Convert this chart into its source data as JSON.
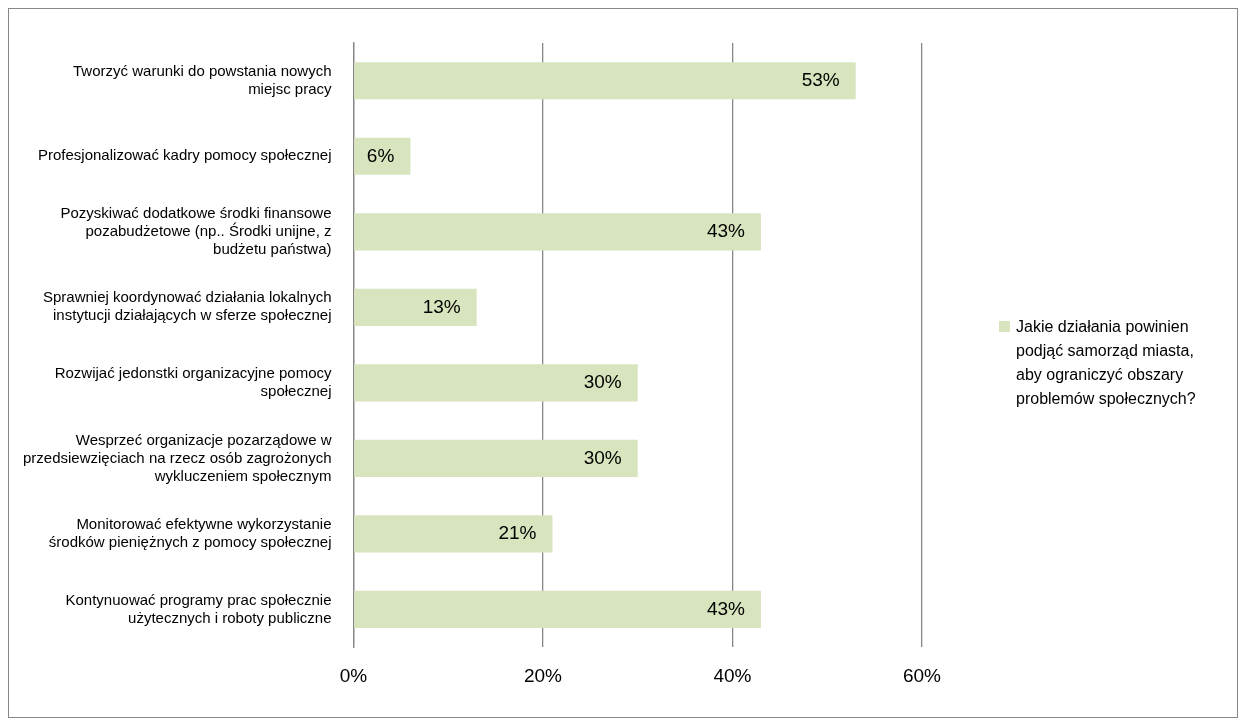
{
  "chart_data": {
    "type": "bar",
    "orientation": "horizontal",
    "categories": [
      "Tworzyć warunki do powstania nowych\nmiejsc pracy",
      "Profesjonalizować kadry pomocy społecznej",
      "Pozyskiwać dodatkowe środki finansowe\npozabudżetowe (np.. Środki unijne, z\nbudżetu państwa)",
      "Sprawniej koordynować działania lokalnych\ninstytucji działających w sferze społecznej",
      "Rozwijać jedonstki organizacyjne pomocy\nspołecznej",
      "Wesprzeć organizacje pozarządowe w\nprzedsiewzięciach na rzecz osób zagrożonych\nwykluczeniem społecznym",
      "Monitorować efektywne wykorzystanie\nśrodków pieniężnych z pomocy społecznej",
      "Kontynuować programy prac społecznie\nużytecznych i roboty publiczne"
    ],
    "series": [
      {
        "name": "Jakie działania powinien podjąć samorząd miasta, aby ograniczyć obszary problemów społecznych?",
        "color": "#d7e4bd",
        "values": [
          53,
          6,
          43,
          13,
          30,
          30,
          21,
          43
        ],
        "value_labels": [
          "53%",
          "6%",
          "43%",
          "13%",
          "30%",
          "30%",
          "21%",
          "43%"
        ]
      }
    ],
    "xlim": [
      0,
      60
    ],
    "xticks": [
      {
        "value": 0,
        "label": "0%"
      },
      {
        "value": 20,
        "label": "20%"
      },
      {
        "value": 40,
        "label": "40%"
      },
      {
        "value": 60,
        "label": "60%"
      }
    ],
    "grid": "x",
    "legend": "right"
  }
}
